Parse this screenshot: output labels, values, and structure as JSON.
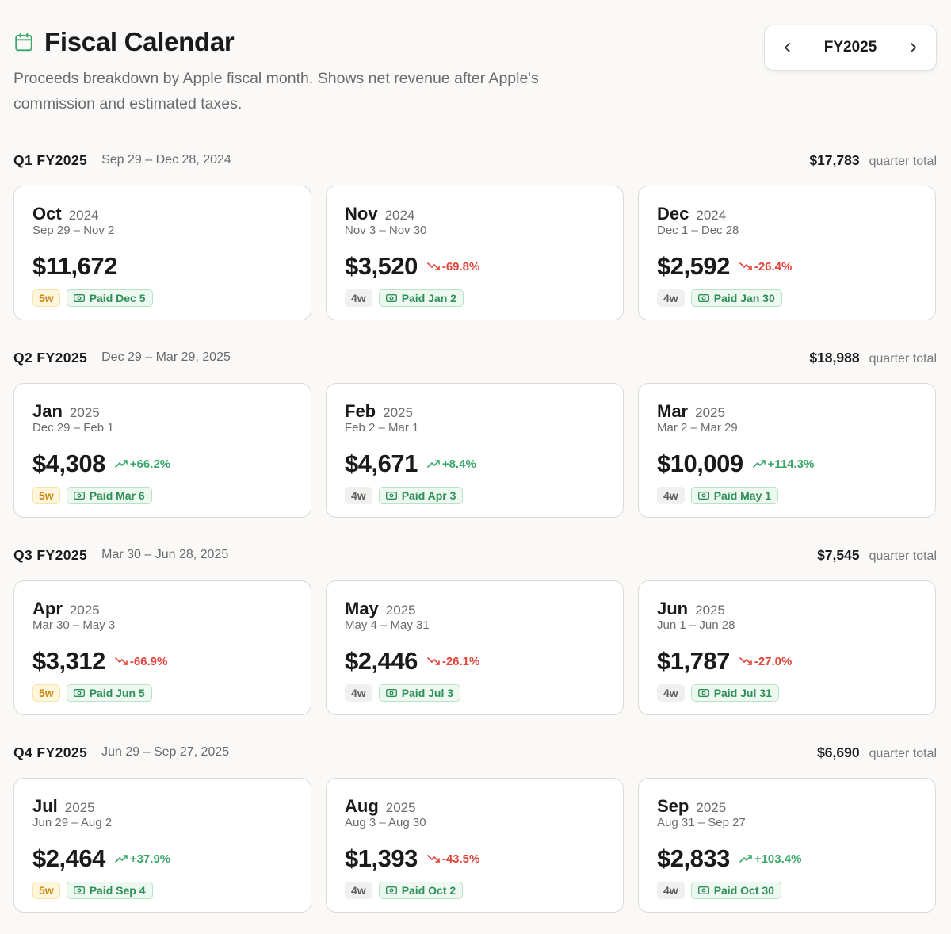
{
  "header": {
    "title": "Fiscal Calendar",
    "subtitle": "Proceeds breakdown by Apple fiscal month. Shows net revenue after Apple's commission and estimated taxes."
  },
  "nav": {
    "fy_label": "FY2025",
    "prev_icon": "chevron-left-icon",
    "next_icon": "chevron-right-icon"
  },
  "colors": {
    "positive": "#3aa86b",
    "negative": "#e0453a",
    "five_week": "#c9850f",
    "paid": "#2e8f58"
  },
  "quarters": [
    {
      "label": "Q1 FY2025",
      "range": "Sep 29 – Dec 28, 2024",
      "total": "$17,783",
      "total_label": "quarter total",
      "months": [
        {
          "name": "Oct",
          "year": "2024",
          "range": "Sep 29 – Nov 2",
          "amount": "$11,672",
          "change": "",
          "direction": "none",
          "weeks": "5w",
          "paid": "Paid Dec 5"
        },
        {
          "name": "Nov",
          "year": "2024",
          "range": "Nov 3 – Nov 30",
          "amount": "$3,520",
          "change": "-69.8%",
          "direction": "down",
          "weeks": "4w",
          "paid": "Paid Jan 2"
        },
        {
          "name": "Dec",
          "year": "2024",
          "range": "Dec 1 – Dec 28",
          "amount": "$2,592",
          "change": "-26.4%",
          "direction": "down",
          "weeks": "4w",
          "paid": "Paid Jan 30"
        }
      ]
    },
    {
      "label": "Q2 FY2025",
      "range": "Dec 29 – Mar 29, 2025",
      "total": "$18,988",
      "total_label": "quarter total",
      "months": [
        {
          "name": "Jan",
          "year": "2025",
          "range": "Dec 29 – Feb 1",
          "amount": "$4,308",
          "change": "+66.2%",
          "direction": "up",
          "weeks": "5w",
          "paid": "Paid Mar 6"
        },
        {
          "name": "Feb",
          "year": "2025",
          "range": "Feb 2 – Mar 1",
          "amount": "$4,671",
          "change": "+8.4%",
          "direction": "up",
          "weeks": "4w",
          "paid": "Paid Apr 3"
        },
        {
          "name": "Mar",
          "year": "2025",
          "range": "Mar 2 – Mar 29",
          "amount": "$10,009",
          "change": "+114.3%",
          "direction": "up",
          "weeks": "4w",
          "paid": "Paid May 1"
        }
      ]
    },
    {
      "label": "Q3 FY2025",
      "range": "Mar 30 – Jun 28, 2025",
      "total": "$7,545",
      "total_label": "quarter total",
      "months": [
        {
          "name": "Apr",
          "year": "2025",
          "range": "Mar 30 – May 3",
          "amount": "$3,312",
          "change": "-66.9%",
          "direction": "down",
          "weeks": "5w",
          "paid": "Paid Jun 5"
        },
        {
          "name": "May",
          "year": "2025",
          "range": "May 4 – May 31",
          "amount": "$2,446",
          "change": "-26.1%",
          "direction": "down",
          "weeks": "4w",
          "paid": "Paid Jul 3"
        },
        {
          "name": "Jun",
          "year": "2025",
          "range": "Jun 1 – Jun 28",
          "amount": "$1,787",
          "change": "-27.0%",
          "direction": "down",
          "weeks": "4w",
          "paid": "Paid Jul 31"
        }
      ]
    },
    {
      "label": "Q4 FY2025",
      "range": "Jun 29 – Sep 27, 2025",
      "total": "$6,690",
      "total_label": "quarter total",
      "months": [
        {
          "name": "Jul",
          "year": "2025",
          "range": "Jun 29 – Aug 2",
          "amount": "$2,464",
          "change": "+37.9%",
          "direction": "up",
          "weeks": "5w",
          "paid": "Paid Sep 4"
        },
        {
          "name": "Aug",
          "year": "2025",
          "range": "Aug 3 – Aug 30",
          "amount": "$1,393",
          "change": "-43.5%",
          "direction": "down",
          "weeks": "4w",
          "paid": "Paid Oct 2"
        },
        {
          "name": "Sep",
          "year": "2025",
          "range": "Aug 31 – Sep 27",
          "amount": "$2,833",
          "change": "+103.4%",
          "direction": "up",
          "weeks": "4w",
          "paid": "Paid Oct 30"
        }
      ]
    }
  ]
}
